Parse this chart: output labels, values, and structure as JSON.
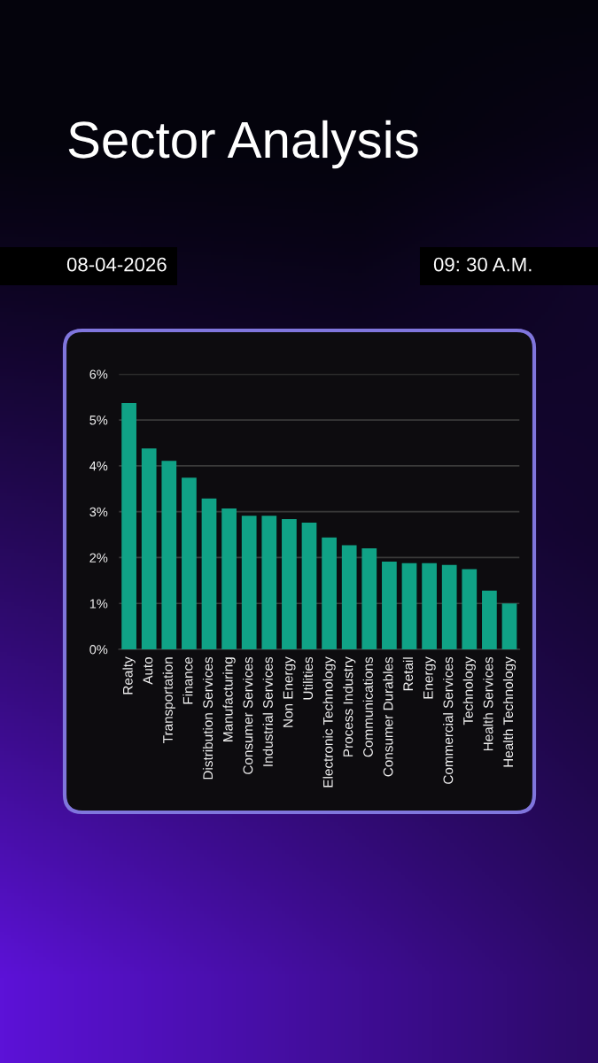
{
  "chart_data": {
    "type": "bar",
    "title": "Sector Analysis",
    "annotations": [
      "08-04-2026",
      "09: 30 A.M."
    ],
    "categories": [
      "Realty",
      "Auto",
      "Transportation",
      "Finance",
      "Distribution Services",
      "Manufacturing",
      "Consumer Services",
      "Industrial Services",
      "Non Energy",
      "Utilities",
      "Electronic Technology",
      "Process Industry",
      "Communications",
      "Consumer Durables",
      "Retail",
      "Energy",
      "Commercial Services",
      "Technology",
      "Health Services",
      "Health Technology"
    ],
    "values": [
      5.37,
      4.38,
      4.11,
      3.74,
      3.29,
      3.07,
      2.91,
      2.91,
      2.84,
      2.76,
      2.44,
      2.27,
      2.2,
      1.91,
      1.88,
      1.88,
      1.84,
      1.75,
      1.28,
      1.0
    ],
    "color": "#10a286",
    "ylim": [
      0,
      6
    ],
    "yticks": [
      {
        "value": 0,
        "label": "0%"
      },
      {
        "value": 1,
        "label": "1%"
      },
      {
        "value": 2,
        "label": "2%"
      },
      {
        "value": 3,
        "label": "3%"
      },
      {
        "value": 4,
        "label": "4%"
      },
      {
        "value": 5,
        "label": "5%"
      },
      {
        "value": 6,
        "label": "6%"
      }
    ],
    "grid": "y"
  }
}
